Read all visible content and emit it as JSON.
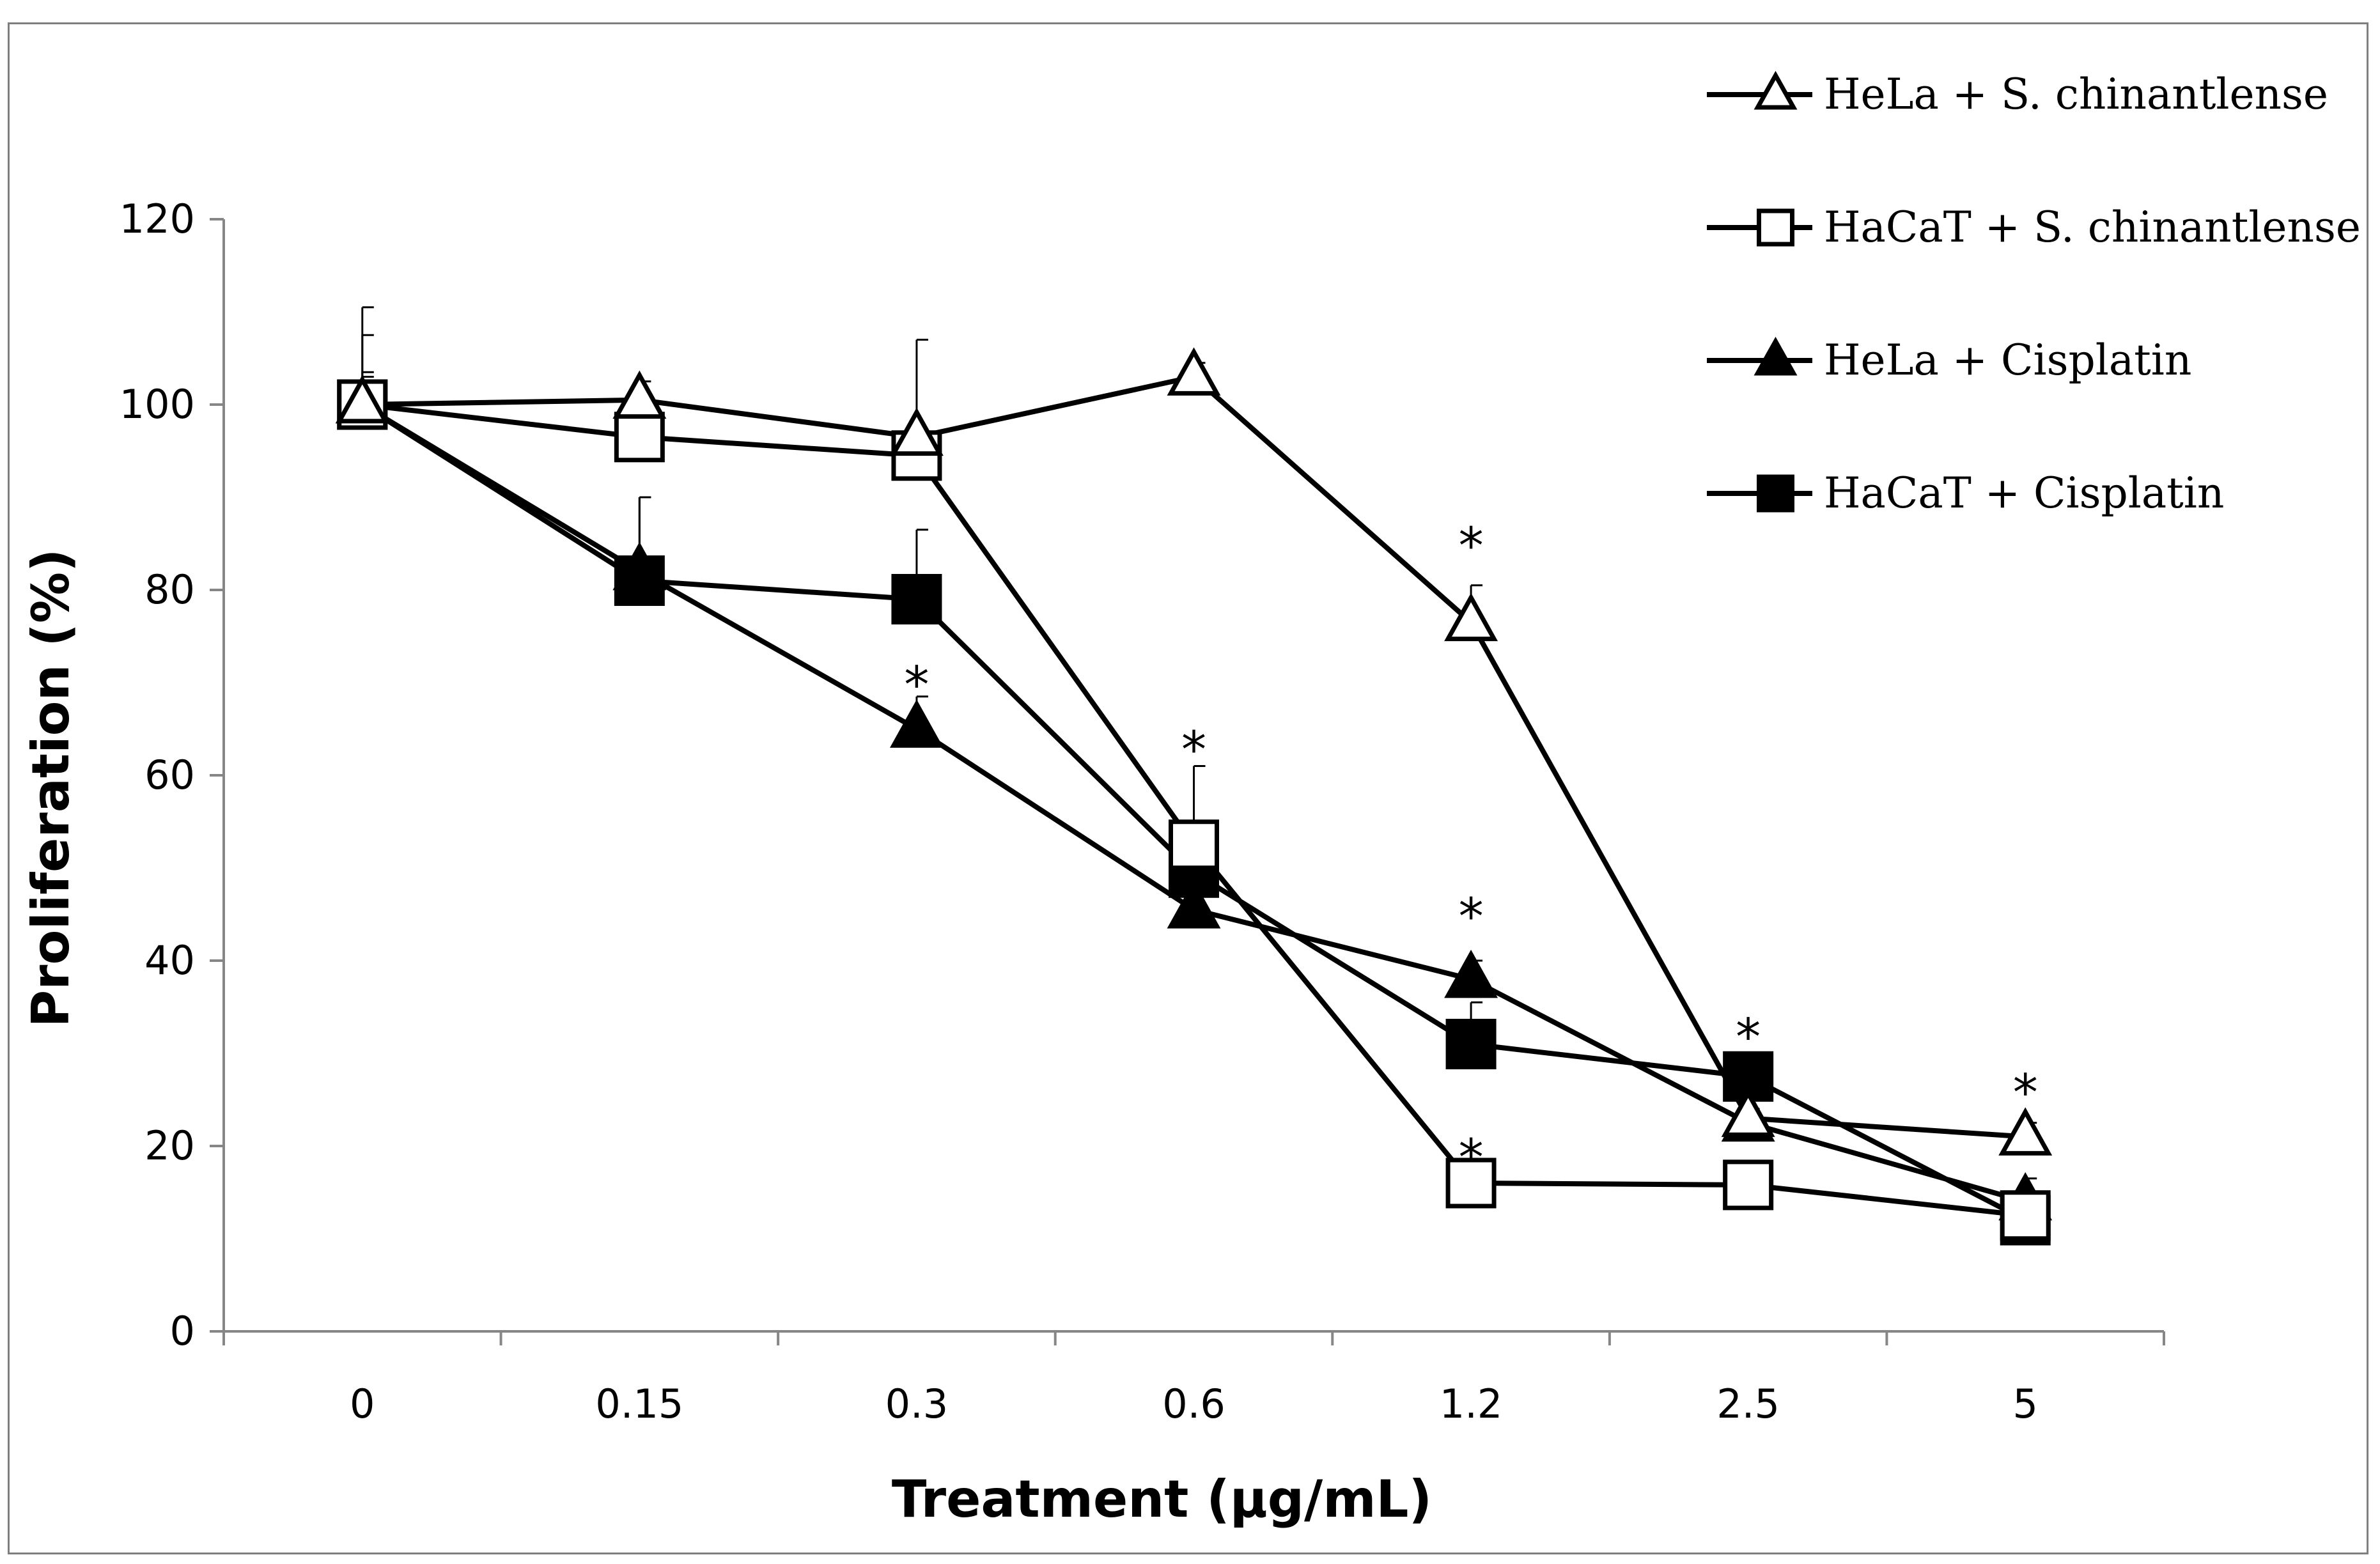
{
  "chart_data": {
    "type": "line",
    "title": "",
    "xlabel": "Treatment (µg/mL)",
    "ylabel": "Proliferation (%)",
    "categories": [
      "0",
      "0.15",
      "0.3",
      "0.6",
      "1.2",
      "2.5",
      "5"
    ],
    "ylim": [
      0,
      120
    ],
    "yticks": [
      "0",
      "20",
      "40",
      "60",
      "80",
      "100",
      "120"
    ],
    "grid": false,
    "legend_position": "top-right",
    "series": [
      {
        "name": "HeLa + S. chinantlense",
        "marker": "triangle-open",
        "values": [
          100,
          100.5,
          96.5,
          103,
          76.5,
          23,
          21
        ],
        "errors": [
          3.5,
          2,
          10.5,
          1.5,
          4,
          1,
          1.5
        ]
      },
      {
        "name": "HaCaT + S. chinantlense",
        "marker": "square-open",
        "values": [
          100,
          96.5,
          94.5,
          52.5,
          16,
          15.8,
          12.5
        ],
        "errors": [
          7.5,
          1,
          1,
          8.5,
          0.5,
          0.5,
          1
        ]
      },
      {
        "name": "HeLa + Cisplatin",
        "marker": "triangle-filled",
        "values": [
          100,
          82,
          65,
          45.5,
          38,
          22.5,
          14
        ],
        "errors": [
          3,
          8,
          3.5,
          2,
          2,
          1,
          2.5
        ]
      },
      {
        "name": "HaCaT + Cisplatin",
        "marker": "square-filled",
        "values": [
          100,
          81,
          79,
          49.5,
          31,
          27.5,
          12
        ],
        "errors": [
          10.5,
          9,
          7.5,
          5.5,
          4.5,
          1.5,
          2
        ]
      }
    ],
    "annotations": [
      {
        "text": "*",
        "category": "0.3",
        "y": 71
      },
      {
        "text": "*",
        "category": "0.6",
        "y": 64
      },
      {
        "text": "*",
        "category": "1.2",
        "y": 86
      },
      {
        "text": "*",
        "category": "1.2",
        "y": 46
      },
      {
        "text": "*",
        "category": "1.2",
        "y": 20
      },
      {
        "text": "*",
        "category": "2.5",
        "y": 33
      },
      {
        "text": "*",
        "category": "5",
        "y": 27
      }
    ]
  }
}
